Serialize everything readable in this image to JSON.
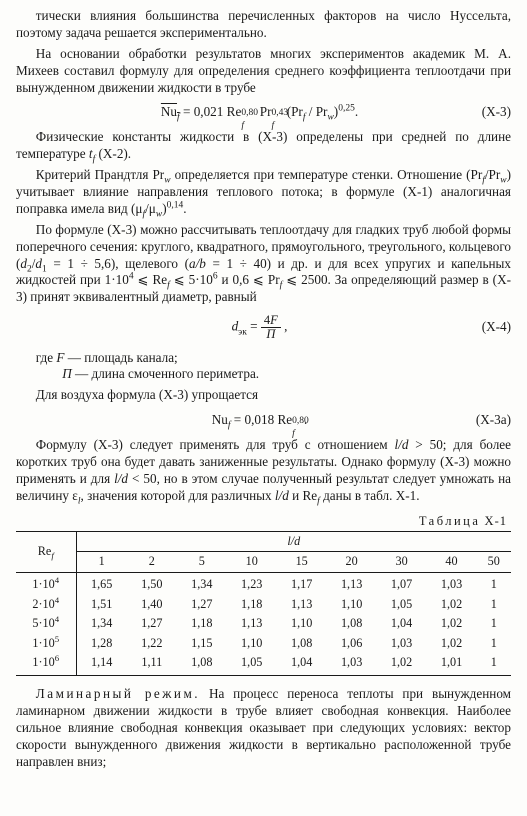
{
  "paragraphs": {
    "p1": "тически влияния большинства перечисленных факторов на число Нуссельта, поэтому задача решается экспериментально.",
    "p2": "На основании обработки результатов многих экспериментов академик М. А. Михеев составил формулу для определения среднего коэффициента теплоотдачи при вынужденном движении жидкости в трубе",
    "p3a": "Физические константы жидкости в (X-3) определены при средней по длине температуре ",
    "p3b": " (X-2).",
    "p4a": "Критерий Прандтля Pr",
    "p4b": "определяется при температуре стенки. Отношение (Pr",
    "p4c": "/Pr",
    "p4d": ") учитывает влияние направления теплового потока; в формуле (X-1) аналогичная поправка имела вид (μ",
    "p4e": "/μ",
    "p4f": ")",
    "p4g": ".",
    "p5a": "По формуле (X-3) можно рассчитывать теплоотдачу для гладких труб любой формы поперечного сечения: круглого, квадратного, прямоугольного, треугольного, кольцевого (",
    "p5b": " = 1 ÷ 5,6), щелевого (",
    "p5c": " = 1 ÷ 40) и др. и для всех упругих и капельных жидкостей при 1·10",
    "p5d": " ⩽ Re",
    "p5e": " ⩽ 5·10",
    "p5f": " и 0,6 ⩽ Pr",
    "p5g": " ⩽ 2500. За определяющий размер в (X-3) принят эквивалентный диаметр, равный",
    "p6a": "Формулу (X-3) следует применять для труб с отношением ",
    "p6b": " > 50; для более коротких труб она будет давать заниженные результаты. Однако формулу (X-3) можно применять и для ",
    "p6c": " < 50, но в этом случае полученный результат следует умножать на величину ε",
    "p6d": ", значения которой для различных ",
    "p6e": " и Re",
    "p6f": " даны в табл. X-1.",
    "p7a": "Ламинарный режим.",
    "p7b": " На процесс переноса теплоты при вынужденном ламинарном движении жидкости в трубе влияет свободная конвекция. Наиболее сильное влияние свободная конвекция оказывает при следующих условиях: вектор скорости вынужденного движения жидкости в вертикально расположенной трубе направлен вниз;"
  },
  "equations": {
    "x3": {
      "num": "(X-3)"
    },
    "x4": {
      "num": "(X-4)"
    },
    "x3a": {
      "num": "(X-3а)"
    }
  },
  "defs": {
    "where": "где ",
    "F": " — площадь канала;",
    "Pi": " — длина смоченного периметра.",
    "air": "Для воздуха формула (X-3) упрощается"
  },
  "tconst": {
    "c1": "0,021",
    "e1": "0,80",
    "e2": "0,43",
    "e3": "0,25",
    "c2": "0,018",
    "e4": "0,80",
    "exp014": "0,14",
    "four": "4",
    "six": "6",
    "sup4": "4"
  },
  "table": {
    "caption_label": "Таблица",
    "caption_num": "X-1",
    "re_header": "Re",
    "re_sub": "f",
    "ld_header": "l/d",
    "ld_cols": [
      "1",
      "2",
      "5",
      "10",
      "15",
      "20",
      "30",
      "40",
      "50"
    ],
    "rows": [
      {
        "re_base": "1·10",
        "re_exp": "4",
        "vals": [
          "1,65",
          "1,50",
          "1,34",
          "1,23",
          "1,17",
          "1,13",
          "1,07",
          "1,03",
          "1"
        ]
      },
      {
        "re_base": "2·10",
        "re_exp": "4",
        "vals": [
          "1,51",
          "1,40",
          "1,27",
          "1,18",
          "1,13",
          "1,10",
          "1,05",
          "1,02",
          "1"
        ]
      },
      {
        "re_base": "5·10",
        "re_exp": "4",
        "vals": [
          "1,34",
          "1,27",
          "1,18",
          "1,13",
          "1,10",
          "1,08",
          "1,04",
          "1,02",
          "1"
        ]
      },
      {
        "re_base": "1·10",
        "re_exp": "5",
        "vals": [
          "1,28",
          "1,22",
          "1,15",
          "1,10",
          "1,08",
          "1,06",
          "1,03",
          "1,02",
          "1"
        ]
      },
      {
        "re_base": "1·10",
        "re_exp": "6",
        "vals": [
          "1,14",
          "1,11",
          "1,08",
          "1,05",
          "1,04",
          "1,03",
          "1,02",
          "1,01",
          "1"
        ]
      }
    ]
  }
}
